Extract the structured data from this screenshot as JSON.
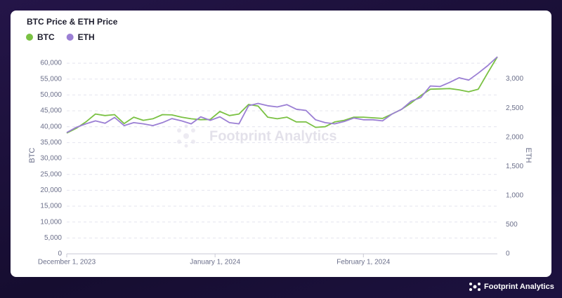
{
  "chart_data": {
    "type": "line",
    "title": "BTC Price & ETH Price",
    "x": [
      "2023-12-01",
      "2023-12-03",
      "2023-12-05",
      "2023-12-07",
      "2023-12-09",
      "2023-12-11",
      "2023-12-13",
      "2023-12-15",
      "2023-12-17",
      "2023-12-19",
      "2023-12-21",
      "2023-12-23",
      "2023-12-25",
      "2023-12-27",
      "2023-12-29",
      "2023-12-31",
      "2024-01-02",
      "2024-01-04",
      "2024-01-06",
      "2024-01-08",
      "2024-01-10",
      "2024-01-12",
      "2024-01-14",
      "2024-01-16",
      "2024-01-18",
      "2024-01-20",
      "2024-01-22",
      "2024-01-24",
      "2024-01-26",
      "2024-01-28",
      "2024-01-30",
      "2024-02-01",
      "2024-02-03",
      "2024-02-05",
      "2024-02-07",
      "2024-02-09",
      "2024-02-11",
      "2024-02-13",
      "2024-02-15",
      "2024-02-17",
      "2024-02-19",
      "2024-02-21",
      "2024-02-23",
      "2024-02-25",
      "2024-02-27",
      "2024-02-29"
    ],
    "series": [
      {
        "name": "BTC",
        "color": "#7ac143",
        "axis": "y",
        "values": [
          38000,
          39500,
          41500,
          44000,
          43500,
          43800,
          41000,
          43000,
          42000,
          42500,
          43800,
          43700,
          43000,
          42500,
          42200,
          42300,
          44800,
          43500,
          44000,
          47000,
          46500,
          43000,
          42500,
          43000,
          41500,
          41500,
          39800,
          40000,
          41500,
          42000,
          43000,
          43000,
          42800,
          42600,
          44000,
          45500,
          47500,
          49800,
          51800,
          51900,
          52000,
          51600,
          51000,
          51800,
          57000,
          62000
        ]
      },
      {
        "name": "ETH",
        "color": "#9b7fd4",
        "axis": "y2",
        "values": [
          2080,
          2170,
          2230,
          2280,
          2240,
          2340,
          2200,
          2250,
          2230,
          2200,
          2250,
          2320,
          2280,
          2230,
          2350,
          2290,
          2350,
          2250,
          2230,
          2540,
          2580,
          2540,
          2520,
          2560,
          2480,
          2460,
          2300,
          2250,
          2230,
          2270,
          2330,
          2300,
          2300,
          2280,
          2400,
          2480,
          2620,
          2680,
          2880,
          2870,
          2940,
          3020,
          2980,
          3100,
          3230,
          3380
        ]
      }
    ],
    "xlim": [
      "2023-12-01",
      "2024-02-29"
    ],
    "xticks": [
      {
        "value": "2023-12-01",
        "label": "December 1, 2023"
      },
      {
        "value": "2024-01-01",
        "label": "January 1, 2024"
      },
      {
        "value": "2024-02-01",
        "label": "February 1, 2024"
      }
    ],
    "ylabel": "BTC",
    "y2label": "ETH",
    "ylim": [
      0,
      62000
    ],
    "yticks": [
      0,
      {
        "value": 5000,
        "label": "5,000"
      },
      {
        "value": 10000,
        "label": "10,000"
      },
      {
        "value": 15000,
        "label": "15,000"
      },
      {
        "value": 20000,
        "label": "20,000"
      },
      {
        "value": 25000,
        "label": "25,000"
      },
      {
        "value": 30000,
        "label": "30,000"
      },
      {
        "value": 35000,
        "label": "35,000"
      },
      {
        "value": 40000,
        "label": "40,000"
      },
      {
        "value": 45000,
        "label": "45,000"
      },
      {
        "value": 50000,
        "label": "50,000"
      },
      {
        "value": 55000,
        "label": "55,000"
      },
      {
        "value": 60000,
        "label": "60,000"
      }
    ],
    "y2lim": [
      0,
      3380
    ],
    "y2ticks": [
      0,
      500,
      {
        "value": 1000,
        "label": "1,000"
      },
      {
        "value": 1500,
        "label": "1,500"
      },
      {
        "value": 2000,
        "label": "2,000"
      },
      {
        "value": 2500,
        "label": "2,500"
      },
      {
        "value": 3000,
        "label": "3,000"
      }
    ],
    "grid": true,
    "legend": "top-left"
  },
  "watermark": "Footprint Analytics",
  "brand": "Footprint Analytics"
}
